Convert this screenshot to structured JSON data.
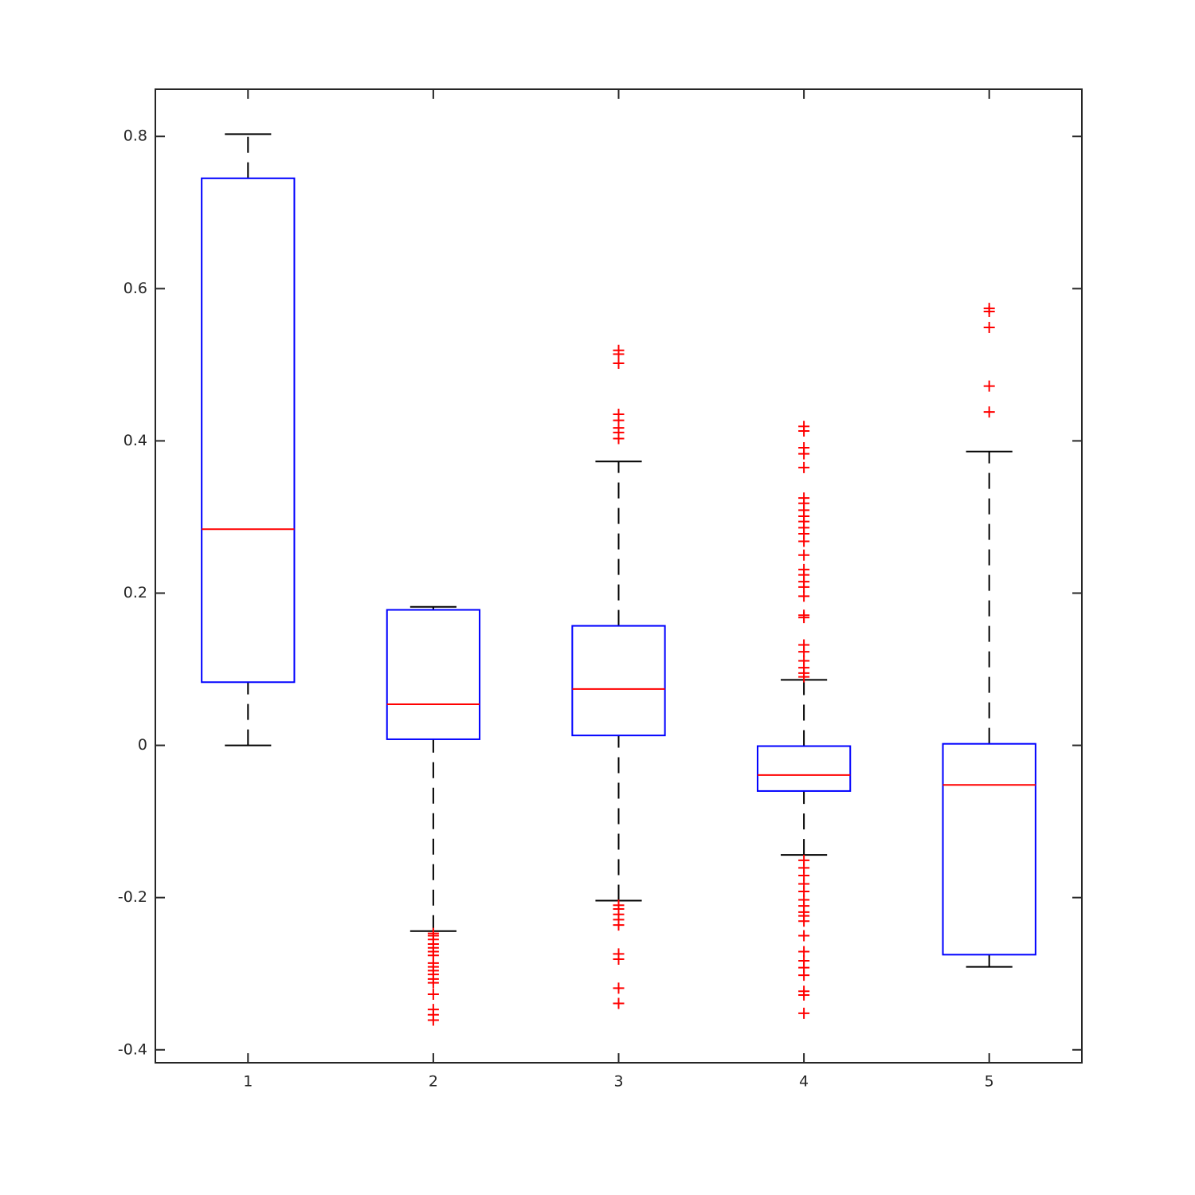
{
  "chart_data": {
    "type": "box",
    "categories": [
      "1",
      "2",
      "3",
      "4",
      "5"
    ],
    "boxes": [
      {
        "whisker_low": 0,
        "q1": 0.083,
        "median": 0.284,
        "q3": 0.745,
        "whisker_high": 0.803,
        "outliers": []
      },
      {
        "whisker_low": -0.244,
        "q1": 0.008,
        "median": 0.054,
        "q3": 0.178,
        "whisker_high": 0.182,
        "outliers": [
          -0.247,
          -0.25,
          -0.255,
          -0.261,
          -0.266,
          -0.271,
          -0.276,
          -0.286,
          -0.291,
          -0.296,
          -0.301,
          -0.307,
          -0.312,
          -0.327,
          -0.347,
          -0.354,
          -0.361
        ]
      },
      {
        "whisker_low": -0.204,
        "q1": 0.013,
        "median": 0.074,
        "q3": 0.157,
        "whisker_high": 0.373,
        "outliers": [
          0.519,
          0.514,
          0.502,
          0.435,
          0.427,
          0.417,
          0.411,
          0.403,
          -0.21,
          -0.215,
          -0.222,
          -0.229,
          -0.236,
          -0.274,
          -0.281,
          -0.319,
          -0.339
        ]
      },
      {
        "whisker_low": -0.144,
        "q1": -0.06,
        "median": -0.039,
        "q3": -0.001,
        "whisker_high": 0.086,
        "outliers": [
          0.419,
          0.413,
          0.391,
          0.383,
          0.365,
          0.325,
          0.318,
          0.309,
          0.301,
          0.294,
          0.286,
          0.278,
          0.268,
          0.25,
          0.231,
          0.224,
          0.215,
          0.208,
          0.196,
          0.171,
          0.168,
          0.132,
          0.123,
          0.111,
          0.102,
          0.095,
          0.09,
          -0.151,
          -0.161,
          -0.171,
          -0.182,
          -0.192,
          -0.203,
          -0.211,
          -0.219,
          -0.224,
          -0.231,
          -0.25,
          -0.271,
          -0.283,
          -0.292,
          -0.302,
          -0.323,
          -0.328,
          -0.352
        ]
      },
      {
        "whisker_low": -0.291,
        "q1": -0.275,
        "median": -0.052,
        "q3": 0.002,
        "whisker_high": 0.386,
        "outliers": [
          0.574,
          0.57,
          0.549,
          0.472,
          0.438
        ]
      }
    ],
    "box_color": "#0000ff",
    "median_color": "#ff0000",
    "whisker_color": "#000000",
    "outlier_color": "#ff0000",
    "ylim": [
      -0.417,
      0.862
    ],
    "yticks": [
      -0.4,
      -0.2,
      0,
      0.2,
      0.4,
      0.6,
      0.8
    ],
    "grid": false
  }
}
